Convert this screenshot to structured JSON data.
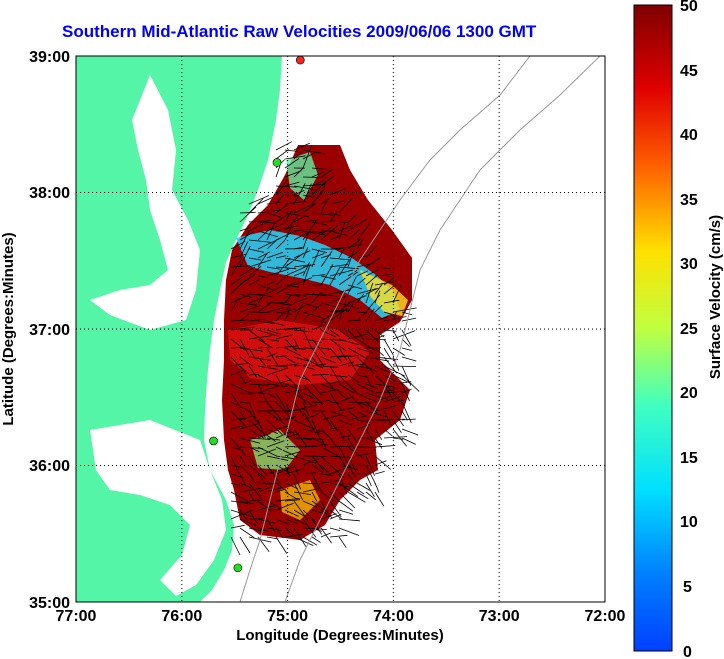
{
  "title": "Southern Mid-Atlantic Raw Velocities 2009/06/06 1300 GMT",
  "x_axis": {
    "label": "Longitude (Degrees:Minutes)",
    "ticks": [
      "77:00",
      "76:00",
      "75:00",
      "74:00",
      "73:00",
      "72:00"
    ]
  },
  "y_axis": {
    "label": "Latitude (Degrees:Minutes)",
    "ticks": [
      "39:00",
      "38:00",
      "37:00",
      "36:00",
      "35:00"
    ]
  },
  "colorbar": {
    "label": "Surface Velocity (cm/s)",
    "ticks": [
      "50",
      "45",
      "40",
      "35",
      "30",
      "25",
      "20",
      "15",
      "10",
      "5",
      "0"
    ],
    "min": 0,
    "max": 50,
    "colormap": "jet"
  },
  "colors": {
    "land": "#55f5a8",
    "water": "#ffffff",
    "grid": "#000000",
    "title": "#0000ff"
  },
  "map_extent": {
    "lon": [
      -77,
      -72
    ],
    "lat": [
      35,
      39
    ]
  },
  "stations": [
    {
      "lon": -74.88,
      "lat": 38.97,
      "color": "#ff2020"
    },
    {
      "lon": -75.1,
      "lat": 38.22,
      "color": "#22dd22"
    },
    {
      "lon": -75.7,
      "lat": 36.18,
      "color": "#22dd22"
    },
    {
      "lon": -75.47,
      "lat": 35.25,
      "color": "#22dd22"
    }
  ]
}
